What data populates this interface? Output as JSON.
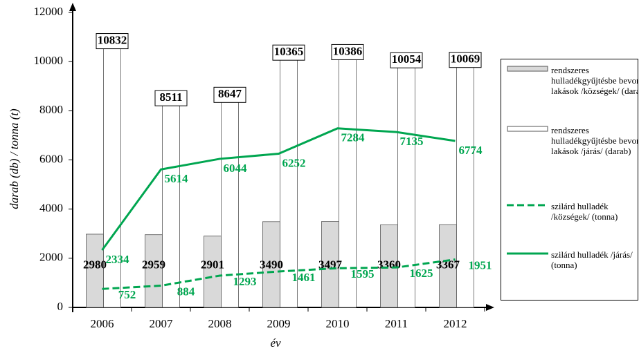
{
  "chart_data": {
    "type": "bar",
    "x_label": "év",
    "y_label": "darab (db) / tonna (t)",
    "categories": [
      "2006",
      "2007",
      "2008",
      "2009",
      "2010",
      "2011",
      "2012"
    ],
    "ylim": [
      0,
      12000
    ],
    "yticks": [
      0,
      2000,
      4000,
      6000,
      8000,
      10000,
      12000
    ],
    "series": [
      {
        "name": "rendszeres hulladékgyűjtésbe bevont lakások /községek/ (darab)",
        "type": "bar",
        "color": "#d9d9d9",
        "values": [
          2980,
          2959,
          2901,
          3490,
          3497,
          3360,
          3367
        ]
      },
      {
        "name": "rendszeres hulladékgyűjtésbe bevont lakások /járás/ (darab)",
        "type": "bar",
        "color": "#ffffff",
        "values": [
          10832,
          8511,
          8647,
          10365,
          10386,
          10054,
          10069
        ]
      },
      {
        "name": "szilárd hulladék /községek/ (tonna)",
        "type": "line",
        "dashed": true,
        "color": "#00a650",
        "values": [
          752,
          884,
          1293,
          1461,
          1595,
          1625,
          1951
        ]
      },
      {
        "name": "szilárd hulladék /járás/ (tonna)",
        "type": "line",
        "dashed": false,
        "color": "#00a650",
        "values": [
          2334,
          5614,
          6044,
          6252,
          7284,
          7135,
          6774
        ]
      }
    ]
  }
}
